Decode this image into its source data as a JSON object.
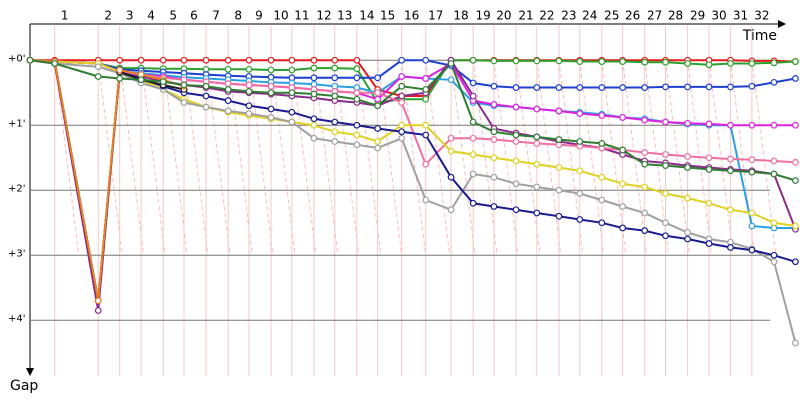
{
  "chart_data": {
    "type": "line",
    "x_label": "Time",
    "y_label": "Gap",
    "grid": true,
    "marker": "circle",
    "x": [
      0,
      0.38,
      1.05,
      1.38,
      1.71,
      2.05,
      2.37,
      2.71,
      3.05,
      3.37,
      3.71,
      4.03,
      4.37,
      4.69,
      5.03,
      5.35,
      5.72,
      6.09,
      6.48,
      6.82,
      7.14,
      7.48,
      7.8,
      8.14,
      8.46,
      8.8,
      9.12,
      9.46,
      9.78,
      10.12,
      10.45,
      10.78,
      11.11,
      11.45,
      11.78
    ],
    "xlim": [
      0,
      11.85
    ],
    "xticks": [
      {
        "value": 0.38,
        "label": "1"
      },
      {
        "value": 1.05,
        "label": "2"
      },
      {
        "value": 1.38,
        "label": "3"
      },
      {
        "value": 1.71,
        "label": "4"
      },
      {
        "value": 2.05,
        "label": "5"
      },
      {
        "value": 2.37,
        "label": "6"
      },
      {
        "value": 2.71,
        "label": "7"
      },
      {
        "value": 3.05,
        "label": "8"
      },
      {
        "value": 3.37,
        "label": "9"
      },
      {
        "value": 3.71,
        "label": "10"
      },
      {
        "value": 4.03,
        "label": "11"
      },
      {
        "value": 4.37,
        "label": "12"
      },
      {
        "value": 4.69,
        "label": "13"
      },
      {
        "value": 5.03,
        "label": "14"
      },
      {
        "value": 5.35,
        "label": "15"
      },
      {
        "value": 5.72,
        "label": "16"
      },
      {
        "value": 6.09,
        "label": "17"
      },
      {
        "value": 6.48,
        "label": "18"
      },
      {
        "value": 6.82,
        "label": "19"
      },
      {
        "value": 7.14,
        "label": "20"
      },
      {
        "value": 7.48,
        "label": "21"
      },
      {
        "value": 7.8,
        "label": "22"
      },
      {
        "value": 8.14,
        "label": "23"
      },
      {
        "value": 8.46,
        "label": "24"
      },
      {
        "value": 8.8,
        "label": "25"
      },
      {
        "value": 9.12,
        "label": "26"
      },
      {
        "value": 9.46,
        "label": "27"
      },
      {
        "value": 9.78,
        "label": "28"
      },
      {
        "value": 10.12,
        "label": "29"
      },
      {
        "value": 10.45,
        "label": "30"
      },
      {
        "value": 10.78,
        "label": "31"
      },
      {
        "value": 11.11,
        "label": "32"
      }
    ],
    "ylim": [
      -0.45,
      4.75
    ],
    "yticks": [
      {
        "value": 0,
        "label": "+0'"
      },
      {
        "value": 1,
        "label": "+1'"
      },
      {
        "value": 2,
        "label": "+2'"
      },
      {
        "value": 3,
        "label": "+3'"
      },
      {
        "value": 4,
        "label": "+4'"
      }
    ],
    "series": [
      {
        "color": "#e41a1c",
        "values": [
          0,
          0,
          0,
          0,
          0,
          0,
          0,
          0,
          0,
          0,
          0,
          0,
          0,
          0,
          0,
          0.45,
          0.55,
          0.55,
          0,
          0,
          0,
          0,
          0,
          0,
          0,
          0,
          0,
          0,
          0,
          0,
          0,
          0,
          0.01,
          0.01,
          0.02
        ]
      },
      {
        "color": "#2ca02c",
        "values": [
          0,
          0.02,
          0.05,
          0.12,
          0.12,
          0.13,
          0.13,
          0.14,
          0.14,
          0.14,
          0.15,
          0.15,
          0.12,
          0.12,
          0.13,
          0.65,
          0.6,
          0.6,
          0,
          0,
          0.01,
          0.01,
          0.01,
          0.01,
          0.02,
          0.02,
          0.02,
          0.03,
          0.03,
          0.05,
          0.07,
          0.05,
          0.05,
          0.04,
          0.02
        ]
      },
      {
        "color": "#1c3fd0",
        "values": [
          0,
          0.02,
          0.05,
          0.14,
          0.16,
          0.18,
          0.2,
          0.22,
          0.24,
          0.25,
          0.26,
          0.27,
          0.27,
          0.27,
          0.27,
          0.27,
          0,
          0,
          0.08,
          0.35,
          0.4,
          0.42,
          0.42,
          0.42,
          0.42,
          0.42,
          0.42,
          0.42,
          0.41,
          0.41,
          0.41,
          0.41,
          0.4,
          0.34,
          0.28
        ]
      },
      {
        "color": "#2aa0e0",
        "values": [
          0,
          0.02,
          0.05,
          0.17,
          0.2,
          0.23,
          0.26,
          0.28,
          0.3,
          0.32,
          0.34,
          0.35,
          0.37,
          0.4,
          0.42,
          0.5,
          0.25,
          0.28,
          0.3,
          0.65,
          0.7,
          0.72,
          0.75,
          0.78,
          0.8,
          0.83,
          0.88,
          0.9,
          0.95,
          0.98,
          1.0,
          1.0,
          2.55,
          2.58,
          2.58
        ]
      },
      {
        "color": "#e020e0",
        "values": [
          0,
          0.02,
          0.05,
          0.18,
          0.22,
          0.25,
          0.3,
          0.33,
          0.36,
          0.38,
          0.4,
          0.42,
          0.45,
          0.48,
          0.5,
          0.6,
          0.25,
          0.28,
          0.05,
          0.62,
          0.68,
          0.72,
          0.75,
          0.78,
          0.82,
          0.85,
          0.88,
          0.92,
          0.95,
          0.97,
          0.98,
          1.0,
          1.0,
          1.0,
          1.0
        ]
      },
      {
        "color": "#8b2a8b",
        "values": [
          0,
          0.05,
          3.85,
          0.15,
          0.25,
          0.32,
          0.38,
          0.42,
          0.48,
          0.5,
          0.52,
          0.55,
          0.58,
          0.62,
          0.65,
          0.7,
          0.55,
          0.5,
          0,
          0.55,
          1.05,
          1.12,
          1.18,
          1.25,
          1.3,
          1.35,
          1.45,
          1.55,
          1.58,
          1.62,
          1.65,
          1.68,
          1.7,
          1.75,
          2.6
        ]
      },
      {
        "color": "#f06fa0",
        "values": [
          0,
          0.02,
          0.05,
          0.17,
          0.22,
          0.27,
          0.3,
          0.33,
          0.36,
          0.38,
          0.4,
          0.42,
          0.45,
          0.48,
          0.5,
          0.5,
          0.65,
          1.6,
          1.2,
          1.2,
          1.22,
          1.25,
          1.28,
          1.3,
          1.32,
          1.35,
          1.38,
          1.42,
          1.45,
          1.48,
          1.5,
          1.52,
          1.53,
          1.55,
          1.57
        ]
      },
      {
        "color": "#e0d020",
        "values": [
          0,
          0.02,
          0.05,
          0.18,
          0.3,
          0.45,
          0.6,
          0.72,
          0.8,
          0.85,
          0.9,
          0.95,
          1.0,
          1.1,
          1.15,
          1.25,
          1.0,
          1.0,
          1.4,
          1.45,
          1.5,
          1.55,
          1.6,
          1.65,
          1.7,
          1.8,
          1.9,
          1.95,
          2.05,
          2.12,
          2.2,
          2.3,
          2.35,
          2.5,
          2.55
        ]
      },
      {
        "color": "#a0a0a0",
        "values": [
          0,
          0.05,
          0.1,
          0.2,
          0.35,
          0.45,
          0.65,
          0.72,
          0.78,
          0.82,
          0.88,
          0.95,
          1.2,
          1.25,
          1.3,
          1.35,
          1.2,
          2.15,
          2.3,
          1.75,
          1.8,
          1.9,
          1.95,
          2.0,
          2.05,
          2.15,
          2.25,
          2.35,
          2.5,
          2.65,
          2.75,
          2.8,
          2.9,
          3.1,
          4.35
        ]
      },
      {
        "color": "#1a1a90",
        "values": [
          0,
          0.02,
          3.7,
          0.18,
          0.28,
          0.4,
          0.5,
          0.55,
          0.62,
          0.7,
          0.75,
          0.8,
          0.9,
          0.95,
          1.0,
          1.05,
          1.1,
          1.15,
          1.8,
          2.2,
          2.25,
          2.3,
          2.35,
          2.4,
          2.45,
          2.5,
          2.58,
          2.62,
          2.7,
          2.75,
          2.82,
          2.88,
          2.92,
          3.0,
          3.1
        ]
      },
      {
        "color": "#202020",
        "values": [
          0,
          0.02,
          3.7,
          0.18,
          0.3,
          0.38,
          0.45,
          null,
          null,
          null,
          null,
          null,
          null,
          null,
          null,
          null,
          null,
          null,
          null,
          null,
          null,
          null,
          null,
          null,
          null,
          null,
          null,
          null,
          null,
          null,
          null,
          null,
          null,
          null,
          null
        ]
      },
      {
        "color": "#f08020",
        "values": [
          0,
          0.02,
          3.7,
          0.15,
          0.22,
          0.3,
          0.4,
          null,
          null,
          null,
          null,
          null,
          null,
          null,
          null,
          null,
          null,
          null,
          null,
          null,
          null,
          null,
          null,
          null,
          null,
          null,
          null,
          null,
          null,
          null,
          null,
          null,
          null,
          null,
          null
        ]
      },
      {
        "color": "#2e7d32",
        "values": [
          0,
          0.05,
          0.25,
          0.28,
          0.3,
          0.33,
          0.38,
          0.4,
          0.45,
          0.48,
          0.5,
          0.5,
          0.52,
          0.55,
          0.6,
          0.7,
          0.4,
          0.45,
          0.05,
          0.95,
          1.1,
          1.15,
          1.18,
          1.22,
          1.25,
          1.28,
          1.38,
          1.6,
          1.62,
          1.65,
          1.68,
          1.7,
          1.72,
          1.75,
          1.85
        ]
      }
    ]
  }
}
